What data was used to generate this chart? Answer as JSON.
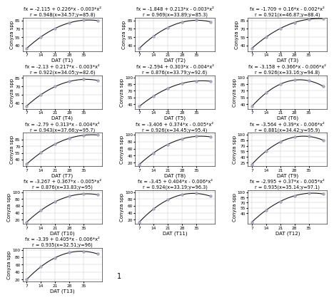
{
  "panels": [
    {
      "label": "T1",
      "eq_line1": "fx = -2.115 + 0.226*x - 0.003*x²",
      "eq_line2": "r = 0.948(x=34.57;y=85.8)",
      "a": -2.115,
      "b": 0.226,
      "c": -0.003,
      "scatter_x": [
        7,
        14,
        21,
        28,
        35,
        42
      ],
      "ylim": [
        30,
        90
      ],
      "yticks": [
        40,
        55,
        70,
        85
      ]
    },
    {
      "label": "T2",
      "eq_line1": "fx = -1.848 + 0.213*x - 0.003*x²",
      "eq_line2": "r = 0.969(x=33.89;y=85.3)",
      "a": -1.848,
      "b": 0.213,
      "c": -0.003,
      "scatter_x": [
        7,
        14,
        21,
        28,
        35,
        42
      ],
      "ylim": [
        30,
        90
      ],
      "yticks": [
        40,
        55,
        70,
        85
      ]
    },
    {
      "label": "T3",
      "eq_line1": "fx = -1.709 + 0.16*x - 0.002*x²",
      "eq_line2": "r = 0.921(x=46.87;y=88.4)",
      "a": -1.709,
      "b": 0.16,
      "c": -0.002,
      "scatter_x": [
        7,
        14,
        21,
        28,
        35,
        42
      ],
      "ylim": [
        30,
        90
      ],
      "yticks": [
        40,
        55,
        70,
        85
      ]
    },
    {
      "label": "T4",
      "eq_line1": "fx = -2.13 + 0.217*x - 0.003*x²",
      "eq_line2": "r = 0.922(x=34.05;y=82.6)",
      "a": -2.13,
      "b": 0.217,
      "c": -0.003,
      "scatter_x": [
        7,
        14,
        21,
        28,
        35,
        42
      ],
      "ylim": [
        30,
        90
      ],
      "yticks": [
        40,
        55,
        70,
        85
      ]
    },
    {
      "label": "T5",
      "eq_line1": "fx = -2.594 + 0.303*x - 0.004*x²",
      "eq_line2": "r = 0.876(x=33.79;y=92.6)",
      "a": -2.594,
      "b": 0.303,
      "c": -0.004,
      "scatter_x": [
        7,
        14,
        21,
        28,
        35,
        42
      ],
      "ylim": [
        30,
        105
      ],
      "yticks": [
        40,
        55,
        70,
        85,
        100
      ]
    },
    {
      "label": "T6",
      "eq_line1": "fx = -3.158 + 0.366*x - 0.006*x²",
      "eq_line2": "r = 0.926(x=33.16;y=94.8)",
      "a": -3.158,
      "b": 0.366,
      "c": -0.006,
      "scatter_x": [
        7,
        14,
        21,
        28,
        35,
        42
      ],
      "ylim": [
        30,
        105
      ],
      "yticks": [
        40,
        55,
        70,
        85,
        100
      ]
    },
    {
      "label": "T7",
      "eq_line1": "fx = -2.79 + 0.313*x - 0.004*x²",
      "eq_line2": "r = 0.943(x=37.66;y=95.7)",
      "a": -2.79,
      "b": 0.313,
      "c": -0.004,
      "scatter_x": [
        7,
        14,
        21,
        28,
        35,
        42
      ],
      "ylim": [
        25,
        100
      ],
      "yticks": [
        40,
        55,
        70,
        85
      ]
    },
    {
      "label": "T8",
      "eq_line1": "fx = -3.406 + 0.374*x - 0.005*x²",
      "eq_line2": "r = 0.926(x=34.45;y=95.4)",
      "a": -3.406,
      "b": 0.374,
      "c": -0.005,
      "scatter_x": [
        7,
        14,
        21,
        28,
        35,
        42
      ],
      "ylim": [
        10,
        105
      ],
      "yticks": [
        20,
        40,
        60,
        80,
        100
      ]
    },
    {
      "label": "T9",
      "eq_line1": "fx = -3.564 + 0.39*x - 0.006*x²",
      "eq_line2": "r = 0.881(x=34.42;y=95.9)",
      "a": -3.564,
      "b": 0.39,
      "c": -0.006,
      "scatter_x": [
        7,
        14,
        21,
        28,
        35,
        42
      ],
      "ylim": [
        15,
        105
      ],
      "yticks": [
        25,
        40,
        55,
        70,
        85,
        100
      ]
    },
    {
      "label": "T10",
      "eq_line1": "fx = -3.267 + 0.367*x - 0.005*x²",
      "eq_line2": "r = 0.876(x=33.83;y=95)",
      "a": -3.267,
      "b": 0.367,
      "c": -0.005,
      "scatter_x": [
        7,
        14,
        21,
        28,
        35,
        42
      ],
      "ylim": [
        8,
        105
      ],
      "yticks": [
        20,
        40,
        60,
        80,
        100
      ]
    },
    {
      "label": "T11",
      "eq_line1": "fx = -3.45 + 0.404*x - 0.006*x²",
      "eq_line2": "r = 0.924(x=33.19;y=96.3)",
      "a": -3.45,
      "b": 0.404,
      "c": -0.006,
      "scatter_x": [
        7,
        14,
        21,
        28,
        35,
        42
      ],
      "ylim": [
        8,
        105
      ],
      "yticks": [
        20,
        40,
        60,
        80,
        100
      ]
    },
    {
      "label": "T12",
      "eq_line1": "fx = -2.995 + 0.37*x - 0.005*x²",
      "eq_line2": "r = 0.935(x=35.14;y=97.1)",
      "a": -2.995,
      "b": 0.37,
      "c": -0.005,
      "scatter_x": [
        7,
        14,
        21,
        28,
        35,
        42
      ],
      "ylim": [
        10,
        105
      ],
      "yticks": [
        40,
        55,
        70,
        85,
        100
      ]
    },
    {
      "label": "T13",
      "eq_line1": "fx = -3.39 + 0.405*x - 0.006*x²",
      "eq_line2": "r = 0.935(x=32.51;y=96)",
      "a": -3.39,
      "b": 0.405,
      "c": -0.006,
      "scatter_x": [
        7,
        14,
        21,
        28,
        35,
        42
      ],
      "ylim": [
        15,
        105
      ],
      "yticks": [
        20,
        40,
        60,
        80,
        100
      ]
    }
  ],
  "curve_color": "#1a1a1a",
  "scatter_color": "#aaaacc",
  "scatter_edge": "#888888",
  "grid_color": "#cccccc",
  "bg_color": "#ffffff",
  "eq_fontsize": 4.8,
  "axis_label_fontsize": 5.0,
  "tick_fontsize": 4.2,
  "xlabel": "DAT",
  "ylabel": "Conyza spp"
}
